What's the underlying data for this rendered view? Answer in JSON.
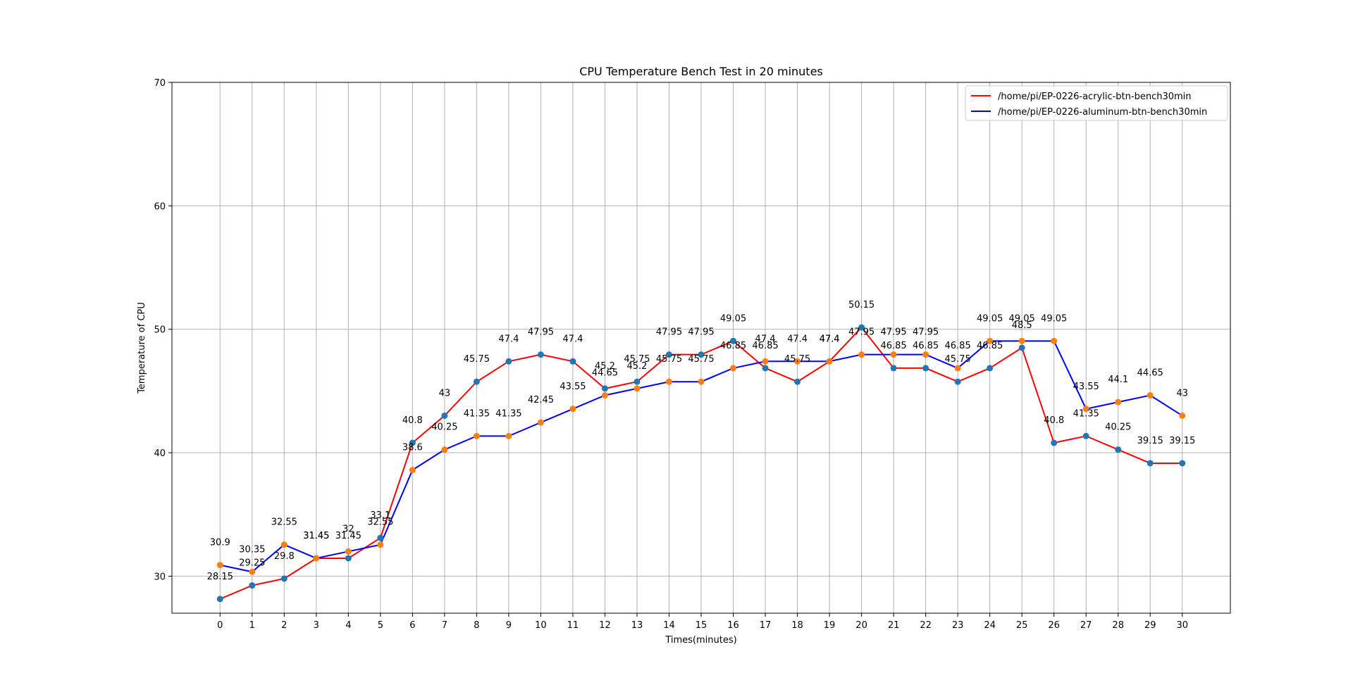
{
  "chart_data": {
    "type": "line",
    "title": "CPU Temperature Bench Test in 20 minutes",
    "xlabel": "Times(minutes)",
    "ylabel": "Temperature of CPU",
    "xlim": [
      -1.5,
      31.5
    ],
    "ylim": [
      27,
      70
    ],
    "x_ticks": [
      0,
      1,
      2,
      3,
      4,
      5,
      6,
      7,
      8,
      9,
      10,
      11,
      12,
      13,
      14,
      15,
      16,
      17,
      18,
      19,
      20,
      21,
      22,
      23,
      24,
      25,
      26,
      27,
      28,
      29,
      30
    ],
    "y_ticks": [
      30,
      40,
      50,
      60,
      70
    ],
    "grid": true,
    "legend_position": "top-right",
    "x": [
      0,
      1,
      2,
      3,
      4,
      5,
      6,
      7,
      8,
      9,
      10,
      11,
      12,
      13,
      14,
      15,
      16,
      17,
      18,
      19,
      20,
      21,
      22,
      23,
      24,
      25,
      26,
      27,
      28,
      29,
      30
    ],
    "series": [
      {
        "name": "/home/pi/EP-0226-acrylic-btn-bench30min",
        "color": "#ff0000",
        "marker_color": "#1f77b4",
        "values": [
          28.15,
          29.25,
          29.8,
          31.45,
          31.45,
          33.1,
          40.8,
          43.0,
          45.75,
          47.4,
          47.95,
          47.4,
          45.2,
          45.75,
          47.95,
          47.95,
          49.05,
          46.85,
          45.75,
          47.4,
          50.15,
          46.85,
          46.85,
          45.75,
          46.85,
          48.5,
          40.8,
          41.35,
          40.25,
          39.15,
          39.15
        ]
      },
      {
        "name": "/home/pi/EP-0226-aluminum-btn-bench30min",
        "color": "#0000ff",
        "marker_color": "#ff7f0e",
        "values": [
          30.9,
          30.35,
          32.55,
          31.45,
          32.0,
          32.55,
          38.6,
          40.25,
          41.35,
          41.35,
          42.45,
          43.55,
          44.65,
          45.2,
          45.75,
          45.75,
          46.85,
          47.4,
          47.4,
          47.4,
          47.95,
          47.95,
          47.95,
          46.85,
          49.05,
          49.05,
          49.05,
          43.55,
          44.1,
          44.65,
          43.0
        ]
      }
    ]
  }
}
